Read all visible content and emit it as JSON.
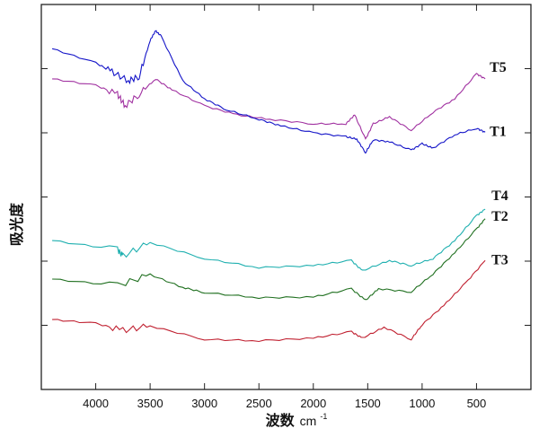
{
  "chart_data": {
    "type": "line",
    "title": "",
    "xlabel": "波数",
    "xlabel_unit": "cm",
    "xlabel_unit_sup": "-1",
    "ylabel": "吸光度",
    "xlim": [
      4500,
      0
    ],
    "x_reversed": true,
    "ylim": [
      0,
      6
    ],
    "xticks": [
      4000,
      3500,
      3000,
      2500,
      2000,
      1500,
      1000,
      500
    ],
    "xtick_labels": [
      "4000",
      "3500",
      "3000",
      "2500",
      "2000",
      "1500",
      "1000",
      "500"
    ],
    "yticks": [
      1,
      2,
      3,
      4,
      5
    ],
    "ytick_labels_shown": false,
    "grid": false,
    "legend": "inline labels at right end of each curve",
    "series": [
      {
        "name": "T5",
        "color": "#a030a0",
        "x": [
          4400,
          4000,
          3800,
          3730,
          3600,
          3450,
          3300,
          3000,
          2700,
          2400,
          2000,
          1700,
          1620,
          1520,
          1450,
          1300,
          1100,
          900,
          700,
          500,
          420
        ],
        "y": [
          4.84,
          4.74,
          4.6,
          4.42,
          4.6,
          4.84,
          4.67,
          4.42,
          4.28,
          4.21,
          4.14,
          4.14,
          4.28,
          3.9,
          4.14,
          4.25,
          4.04,
          4.32,
          4.53,
          4.92,
          4.84
        ]
      },
      {
        "name": "T1",
        "color": "#1414c8",
        "x": [
          4400,
          4000,
          3850,
          3700,
          3600,
          3500,
          3450,
          3400,
          3200,
          3000,
          2800,
          2500,
          2300,
          2000,
          1700,
          1600,
          1520,
          1450,
          1300,
          1100,
          1000,
          900,
          700,
          500,
          420
        ],
        "y": [
          5.31,
          5.09,
          4.95,
          4.81,
          4.88,
          5.44,
          5.59,
          5.51,
          4.81,
          4.53,
          4.36,
          4.21,
          4.11,
          4.0,
          3.94,
          3.9,
          3.69,
          3.89,
          3.86,
          3.73,
          3.83,
          3.76,
          3.97,
          4.07,
          4.01
        ]
      },
      {
        "name": "T4",
        "color": "#20b0b0",
        "x": [
          4400,
          3800,
          3750,
          3500,
          3000,
          2500,
          2000,
          1650,
          1550,
          1300,
          1100,
          900,
          700,
          500,
          420
        ],
        "y": [
          2.32,
          2.18,
          2.08,
          2.29,
          2.04,
          1.9,
          1.93,
          2.01,
          1.85,
          2.01,
          1.93,
          2.04,
          2.32,
          2.71,
          2.81
        ]
      },
      {
        "name": "T2",
        "color": "#207020",
        "x": [
          4400,
          3800,
          3500,
          3200,
          3000,
          2500,
          2000,
          1650,
          1520,
          1400,
          1100,
          900,
          700,
          500,
          420
        ],
        "y": [
          1.72,
          1.62,
          1.79,
          1.59,
          1.51,
          1.43,
          1.44,
          1.57,
          1.39,
          1.57,
          1.52,
          1.8,
          2.13,
          2.5,
          2.66
        ]
      },
      {
        "name": "T3",
        "color": "#c02030",
        "x": [
          4400,
          4000,
          3750,
          3500,
          3000,
          2500,
          2000,
          1650,
          1550,
          1350,
          1100,
          1000,
          800,
          600,
          420
        ],
        "y": [
          1.09,
          1.03,
          0.92,
          0.99,
          0.78,
          0.76,
          0.8,
          0.9,
          0.8,
          0.97,
          0.78,
          1.01,
          1.31,
          1.66,
          2.01
        ]
      }
    ]
  }
}
